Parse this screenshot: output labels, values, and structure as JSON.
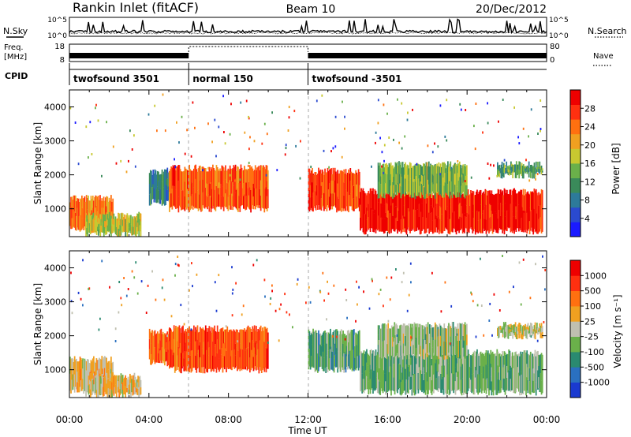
{
  "header": {
    "station": "Rankin Inlet (fitACF)",
    "beam": "Beam 10",
    "date": "20/Dec/2012"
  },
  "top_panels": {
    "nsky_label": "N.Sky",
    "nsky_ticks": [
      "10^5",
      "10^0"
    ],
    "nsearch_label": "N.Search",
    "nsearch_ticks": [
      "10^5",
      "10^0"
    ],
    "freq_label_1": "Freq.",
    "freq_label_2": "[MHz]",
    "freq_ticks": [
      "18",
      "8"
    ],
    "nave_label": "Nave",
    "nave_ticks": [
      "80",
      "0"
    ],
    "cpid_label": "CPID",
    "cpid_segments": [
      {
        "label": "twofsound 3501",
        "start_h": 0,
        "end_h": 6
      },
      {
        "label": "normal 150",
        "start_h": 6,
        "end_h": 12
      },
      {
        "label": "twofsound -3501",
        "start_h": 12,
        "end_h": 24
      }
    ]
  },
  "colors": {
    "power_scale": [
      "#1a1aff",
      "#2a4ad0",
      "#2d7a9a",
      "#3a8a5a",
      "#6ab04a",
      "#c8c830",
      "#f0a020",
      "#ff7010",
      "#ff3010",
      "#ee0000"
    ],
    "velocity_scale": [
      "#1a3ad0",
      "#2a70c0",
      "#2a8a70",
      "#6ab04a",
      "#c0c0b0",
      "#f0a020",
      "#ff7010",
      "#ff3010",
      "#ee0000"
    ]
  },
  "chart_data": [
    {
      "type": "heatmap",
      "title": "Power",
      "xlabel": "Time UT",
      "ylabel": "Slant Range [km]",
      "xlim": [
        0,
        24
      ],
      "ylim": [
        180,
        4500
      ],
      "x_ticks": [
        "00:00",
        "04:00",
        "08:00",
        "12:00",
        "16:00",
        "20:00",
        "00:00"
      ],
      "y_ticks": [
        1000,
        2000,
        3000,
        4000
      ],
      "colorbar_label": "Power [dB]",
      "colorbar_ticks": [
        "28",
        "24",
        "20",
        "16",
        "12",
        "8",
        "4"
      ],
      "colorbar_range": [
        0,
        30
      ],
      "regions": [
        {
          "t0": 0.0,
          "t1": 2.2,
          "r0": 400,
          "r1": 1300,
          "value": 22
        },
        {
          "t0": 0.8,
          "t1": 3.6,
          "r0": 250,
          "r1": 800,
          "value": 16
        },
        {
          "t0": 4.0,
          "t1": 5.3,
          "r0": 1200,
          "r1": 2100,
          "value": 8
        },
        {
          "t0": 5.0,
          "t1": 10.0,
          "r0": 1000,
          "r1": 2200,
          "value": 24
        },
        {
          "t0": 12.0,
          "t1": 14.6,
          "r0": 1000,
          "r1": 2100,
          "value": 25
        },
        {
          "t0": 14.6,
          "t1": 23.8,
          "r0": 350,
          "r1": 1500,
          "value": 27
        },
        {
          "t0": 15.5,
          "t1": 20.0,
          "r0": 1400,
          "r1": 2300,
          "value": 14
        },
        {
          "t0": 21.5,
          "t1": 23.8,
          "r0": 2000,
          "r1": 2300,
          "value": 12
        }
      ]
    },
    {
      "type": "heatmap",
      "title": "Velocity",
      "xlabel": "Time UT",
      "ylabel": "Slant Range [km]",
      "xlim": [
        0,
        24
      ],
      "ylim": [
        180,
        4500
      ],
      "x_ticks": [
        "00:00",
        "04:00",
        "08:00",
        "12:00",
        "16:00",
        "20:00",
        "00:00"
      ],
      "y_ticks": [
        1000,
        2000,
        3000,
        4000
      ],
      "colorbar_label": "Velocity [m s⁻¹]",
      "colorbar_ticks": [
        "1000",
        "500",
        "100",
        "25",
        "-25",
        "-100",
        "-500",
        "-1000"
      ],
      "colorbar_range": [
        -1200,
        1200
      ],
      "regions": [
        {
          "t0": 0.0,
          "t1": 2.2,
          "r0": 400,
          "r1": 1300,
          "value": 150
        },
        {
          "t0": 0.8,
          "t1": 3.6,
          "r0": 250,
          "r1": 800,
          "value": 120
        },
        {
          "t0": 4.0,
          "t1": 5.3,
          "r0": 1200,
          "r1": 2100,
          "value": 600
        },
        {
          "t0": 5.0,
          "t1": 10.0,
          "r0": 1000,
          "r1": 2200,
          "value": 700
        },
        {
          "t0": 12.0,
          "t1": 14.6,
          "r0": 1000,
          "r1": 2100,
          "value": -400
        },
        {
          "t0": 14.6,
          "t1": 23.8,
          "r0": 350,
          "r1": 1500,
          "value": -300
        },
        {
          "t0": 15.5,
          "t1": 20.0,
          "r0": 1400,
          "r1": 2300,
          "value": -150
        },
        {
          "t0": 21.5,
          "t1": 23.8,
          "r0": 2000,
          "r1": 2300,
          "value": 0
        }
      ]
    }
  ]
}
